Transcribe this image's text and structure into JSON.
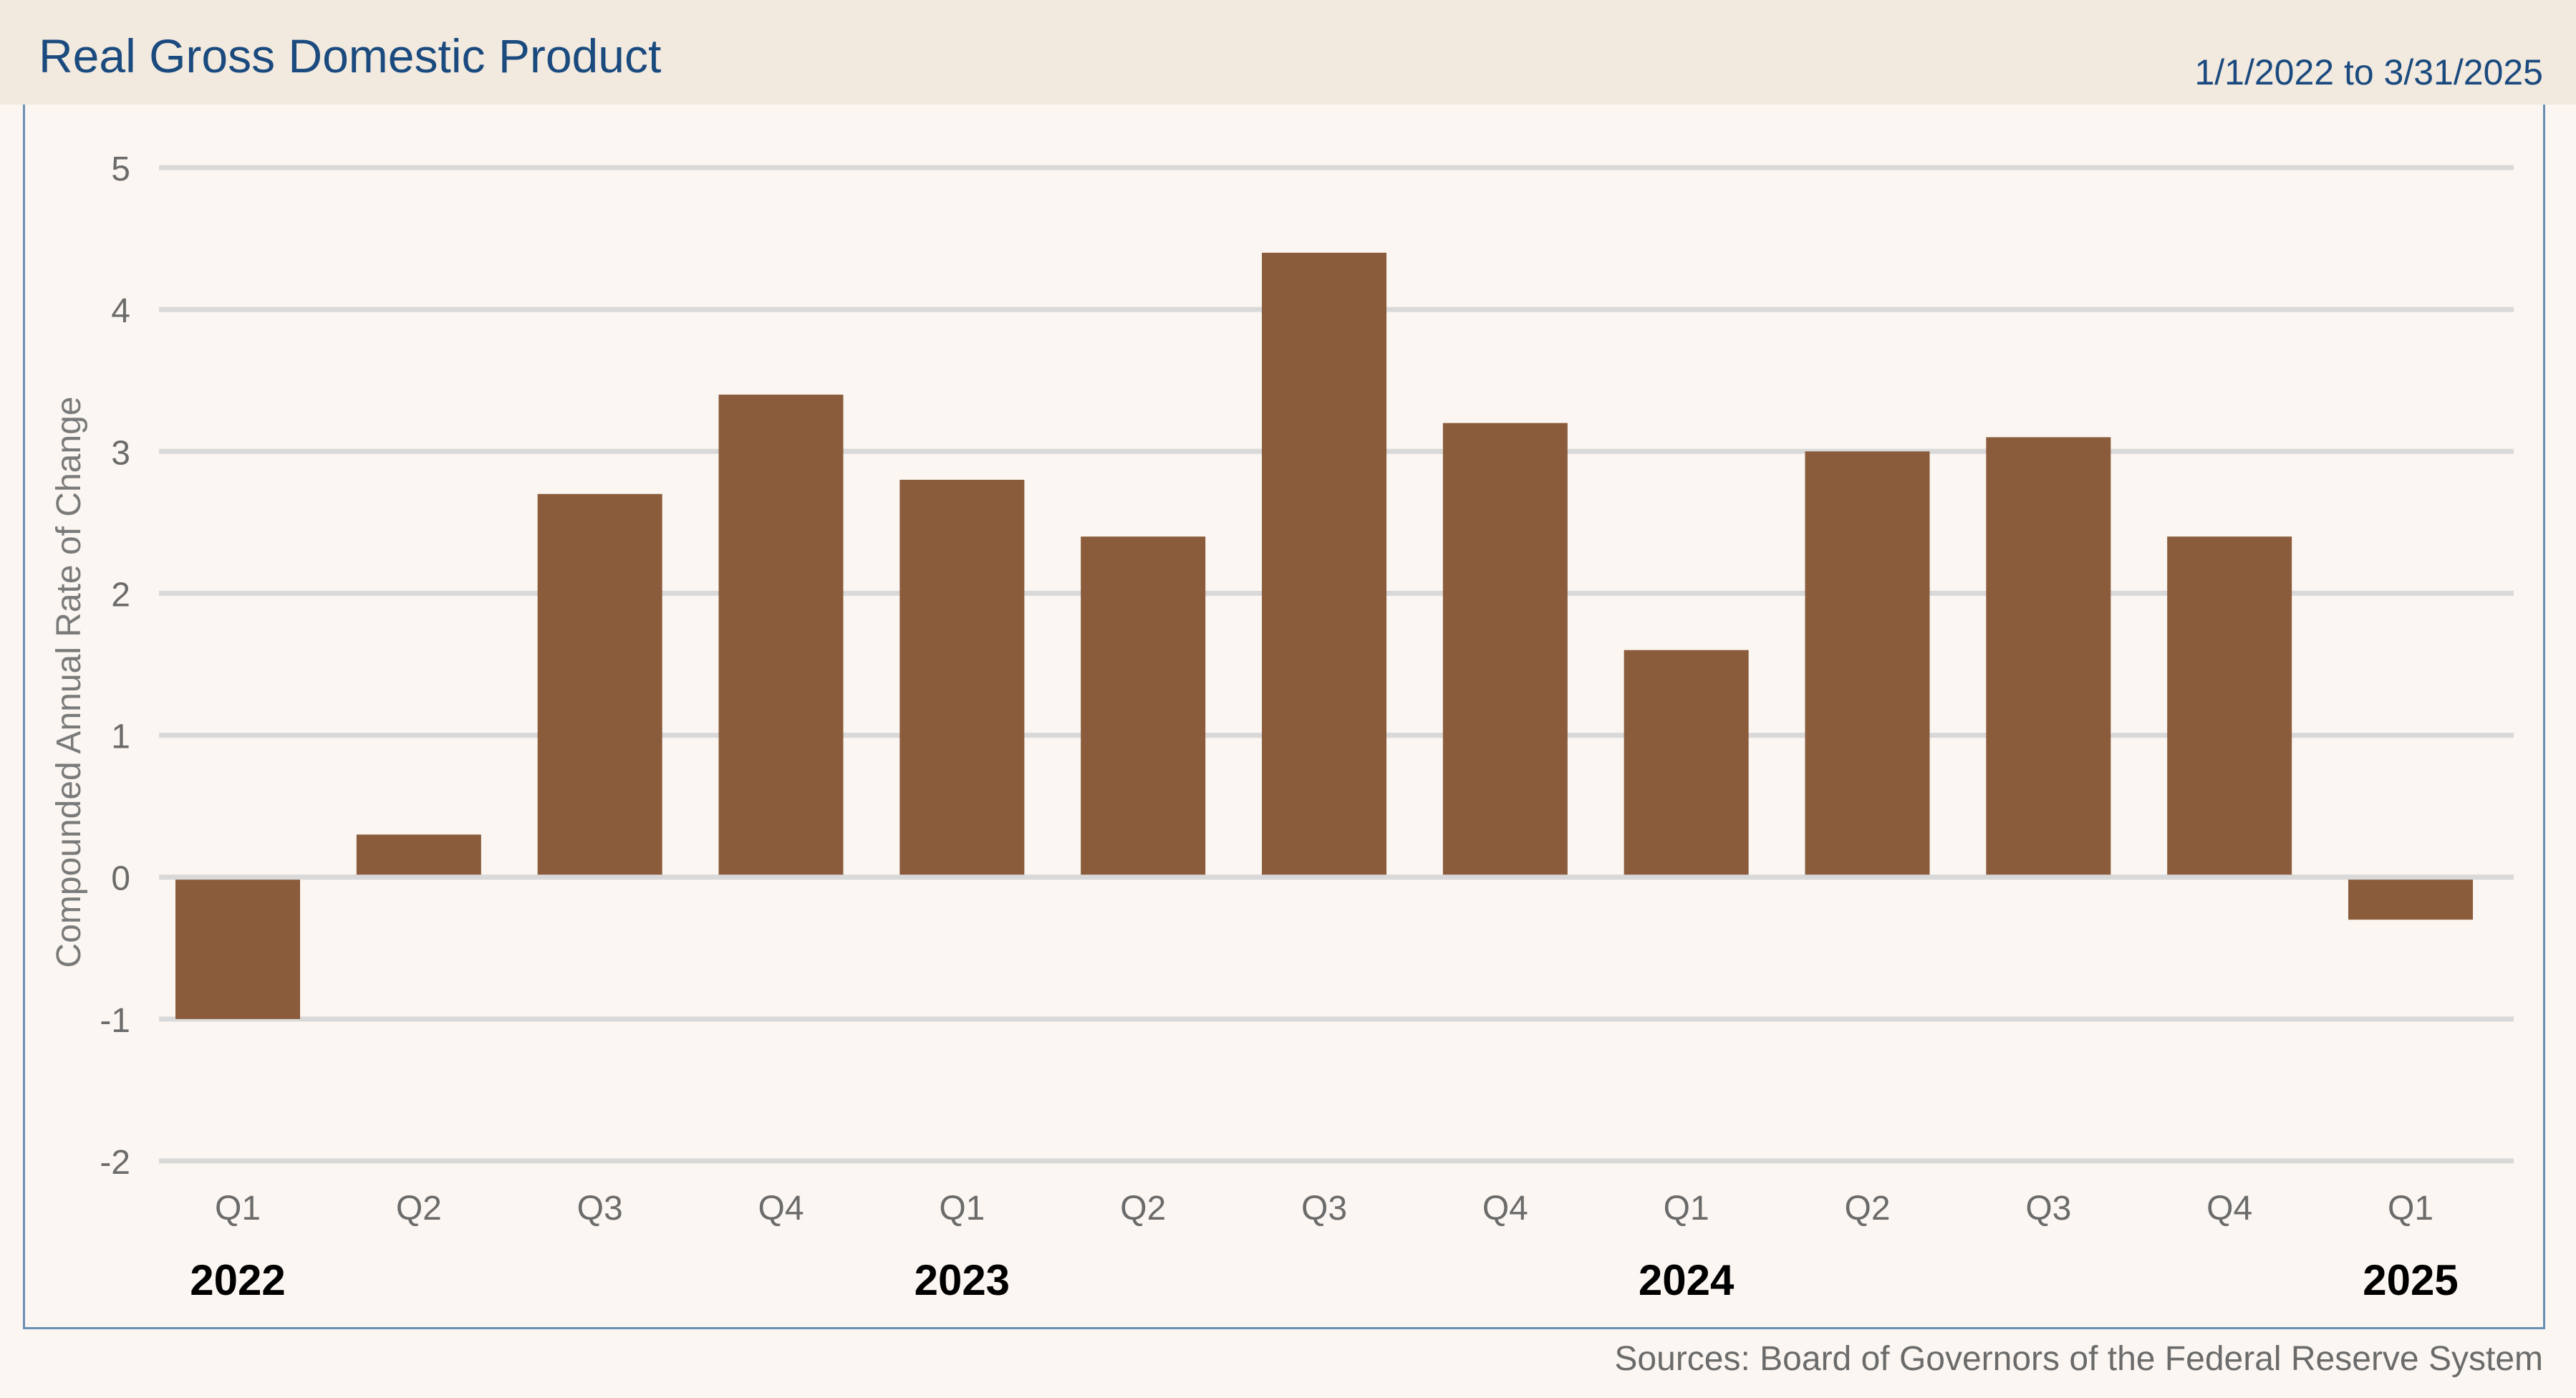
{
  "header": {
    "title": "Real Gross Domestic Product",
    "date_range": "1/1/2022 to 3/31/2025"
  },
  "footer": {
    "sources": "Sources: Board of Governors of the Federal Reserve System"
  },
  "colors": {
    "bar": "#8a5c3c",
    "grid": "#d9d9d9",
    "title": "#1a4a7e",
    "header_bg": "#f2e9df",
    "page_bg": "#fbf6f1"
  },
  "chart_data": {
    "type": "bar",
    "title": "Real Gross Domestic Product",
    "xlabel": "",
    "ylabel": "Compounded Annual Rate of Change",
    "ylim": [
      -2,
      5
    ],
    "yticks": [
      5,
      4,
      3,
      2,
      1,
      0,
      -1,
      -2
    ],
    "grid": true,
    "categories": [
      "Q1",
      "Q2",
      "Q3",
      "Q4",
      "Q1",
      "Q2",
      "Q3",
      "Q4",
      "Q1",
      "Q2",
      "Q3",
      "Q4",
      "Q1"
    ],
    "year_labels": [
      {
        "label": "2022",
        "index": 0
      },
      {
        "label": "2023",
        "index": 4
      },
      {
        "label": "2024",
        "index": 8
      },
      {
        "label": "2025",
        "index": 12
      }
    ],
    "series": [
      {
        "name": "Real GDP",
        "values": [
          -1.0,
          0.3,
          2.7,
          3.4,
          2.8,
          2.4,
          4.4,
          3.2,
          1.6,
          3.0,
          3.1,
          2.4,
          -0.3
        ]
      }
    ]
  }
}
